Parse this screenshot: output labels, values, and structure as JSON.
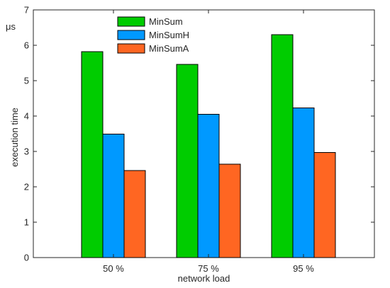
{
  "chart_data": {
    "type": "bar",
    "categories": [
      "50 %",
      "75 %",
      "95 %"
    ],
    "series": [
      {
        "name": "MinSum",
        "color": "#00cc00",
        "values": [
          5.82,
          5.46,
          6.3
        ]
      },
      {
        "name": "MinSumH",
        "color": "#0099ff",
        "values": [
          3.49,
          4.05,
          4.23
        ]
      },
      {
        "name": "MinSumA",
        "color": "#ff6622",
        "values": [
          2.46,
          2.64,
          2.97
        ]
      }
    ],
    "xlabel": "network load",
    "ylabel": "execution time",
    "yunit": "μs",
    "ylim": [
      0,
      7
    ],
    "yticks": [
      0,
      1,
      2,
      3,
      4,
      5,
      6,
      7
    ],
    "grid": false,
    "legend_position": "top-center"
  }
}
